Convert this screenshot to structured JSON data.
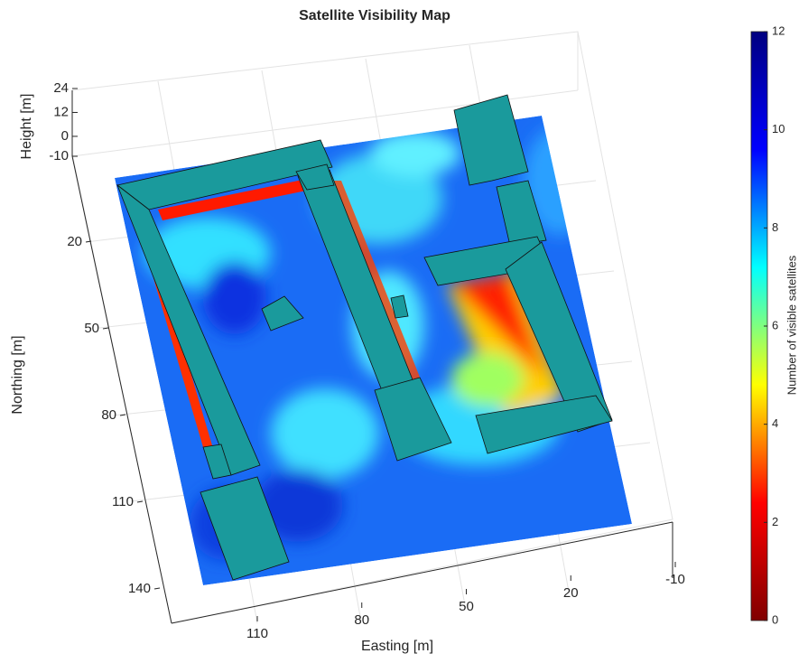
{
  "chart_data": {
    "type": "surface3d",
    "title": "Satellite Visibility Map",
    "xlabel": "Easting [m]",
    "xticks": [
      110,
      80,
      50,
      20,
      -10
    ],
    "ylabel": "Northing [m]",
    "yticks": [
      20,
      50,
      80,
      110,
      140
    ],
    "zlabel": "Height [m]",
    "zticks": [
      -10,
      0,
      12,
      24
    ],
    "colorbar_label": "Number of visible satellites",
    "clim": [
      0,
      12
    ],
    "cticks": [
      0,
      2,
      4,
      6,
      8,
      10,
      12
    ],
    "colormap": [
      "#800000",
      "#ff0000",
      "#ffff00",
      "#00ffff",
      "#0000ff",
      "#000080"
    ]
  }
}
